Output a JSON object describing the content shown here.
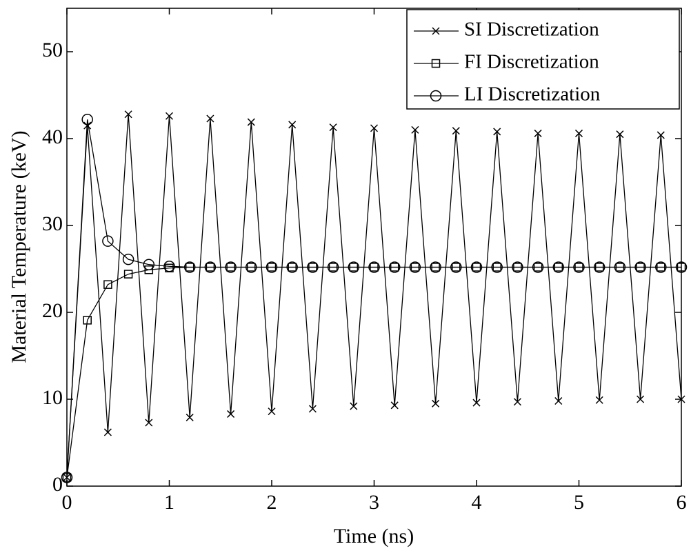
{
  "chart_data": {
    "type": "line",
    "x_label": "Time (ns)",
    "y_label": "Material Temperature (keV)",
    "x": [
      0,
      0.2,
      0.4,
      0.6,
      0.8,
      1.0,
      1.2,
      1.4,
      1.6,
      1.8,
      2.0,
      2.2,
      2.4,
      2.6,
      2.8,
      3.0,
      3.2,
      3.4,
      3.6,
      3.8,
      4.0,
      4.2,
      4.4,
      4.6,
      4.8,
      5.0,
      5.2,
      5.4,
      5.6,
      5.8,
      6.0
    ],
    "series": [
      {
        "name": "SI Discretization",
        "color": "#000000",
        "marker": "x",
        "values": [
          1,
          41.5,
          6.2,
          42.8,
          7.3,
          42.6,
          7.9,
          42.3,
          8.3,
          41.9,
          8.6,
          41.6,
          8.9,
          41.3,
          9.2,
          41.2,
          9.3,
          41.0,
          9.5,
          40.9,
          9.6,
          40.8,
          9.7,
          40.6,
          9.8,
          40.6,
          9.9,
          40.5,
          10.0,
          40.4,
          10.0
        ]
      },
      {
        "name": "FI Discretization",
        "color": "#000000",
        "marker": "square",
        "values": [
          1,
          19.1,
          23.2,
          24.4,
          24.9,
          25.1,
          25.2,
          25.2,
          25.2,
          25.2,
          25.2,
          25.2,
          25.2,
          25.2,
          25.2,
          25.2,
          25.2,
          25.2,
          25.2,
          25.2,
          25.2,
          25.2,
          25.2,
          25.2,
          25.2,
          25.2,
          25.2,
          25.2,
          25.2,
          25.2,
          25.2
        ]
      },
      {
        "name": "LI Discretization",
        "color": "#000000",
        "marker": "circle",
        "values": [
          1,
          42.2,
          28.2,
          26.1,
          25.5,
          25.3,
          25.2,
          25.2,
          25.2,
          25.2,
          25.2,
          25.2,
          25.2,
          25.2,
          25.2,
          25.2,
          25.2,
          25.2,
          25.2,
          25.2,
          25.2,
          25.2,
          25.2,
          25.2,
          25.2,
          25.2,
          25.2,
          25.2,
          25.2,
          25.2,
          25.2
        ]
      }
    ],
    "xlim": [
      0,
      6
    ],
    "xticks": [
      0,
      1,
      2,
      3,
      4,
      5,
      6
    ],
    "ylim": [
      0,
      55
    ],
    "yticks": [
      0,
      10,
      20,
      30,
      40,
      50
    ],
    "legend": "upper right"
  }
}
